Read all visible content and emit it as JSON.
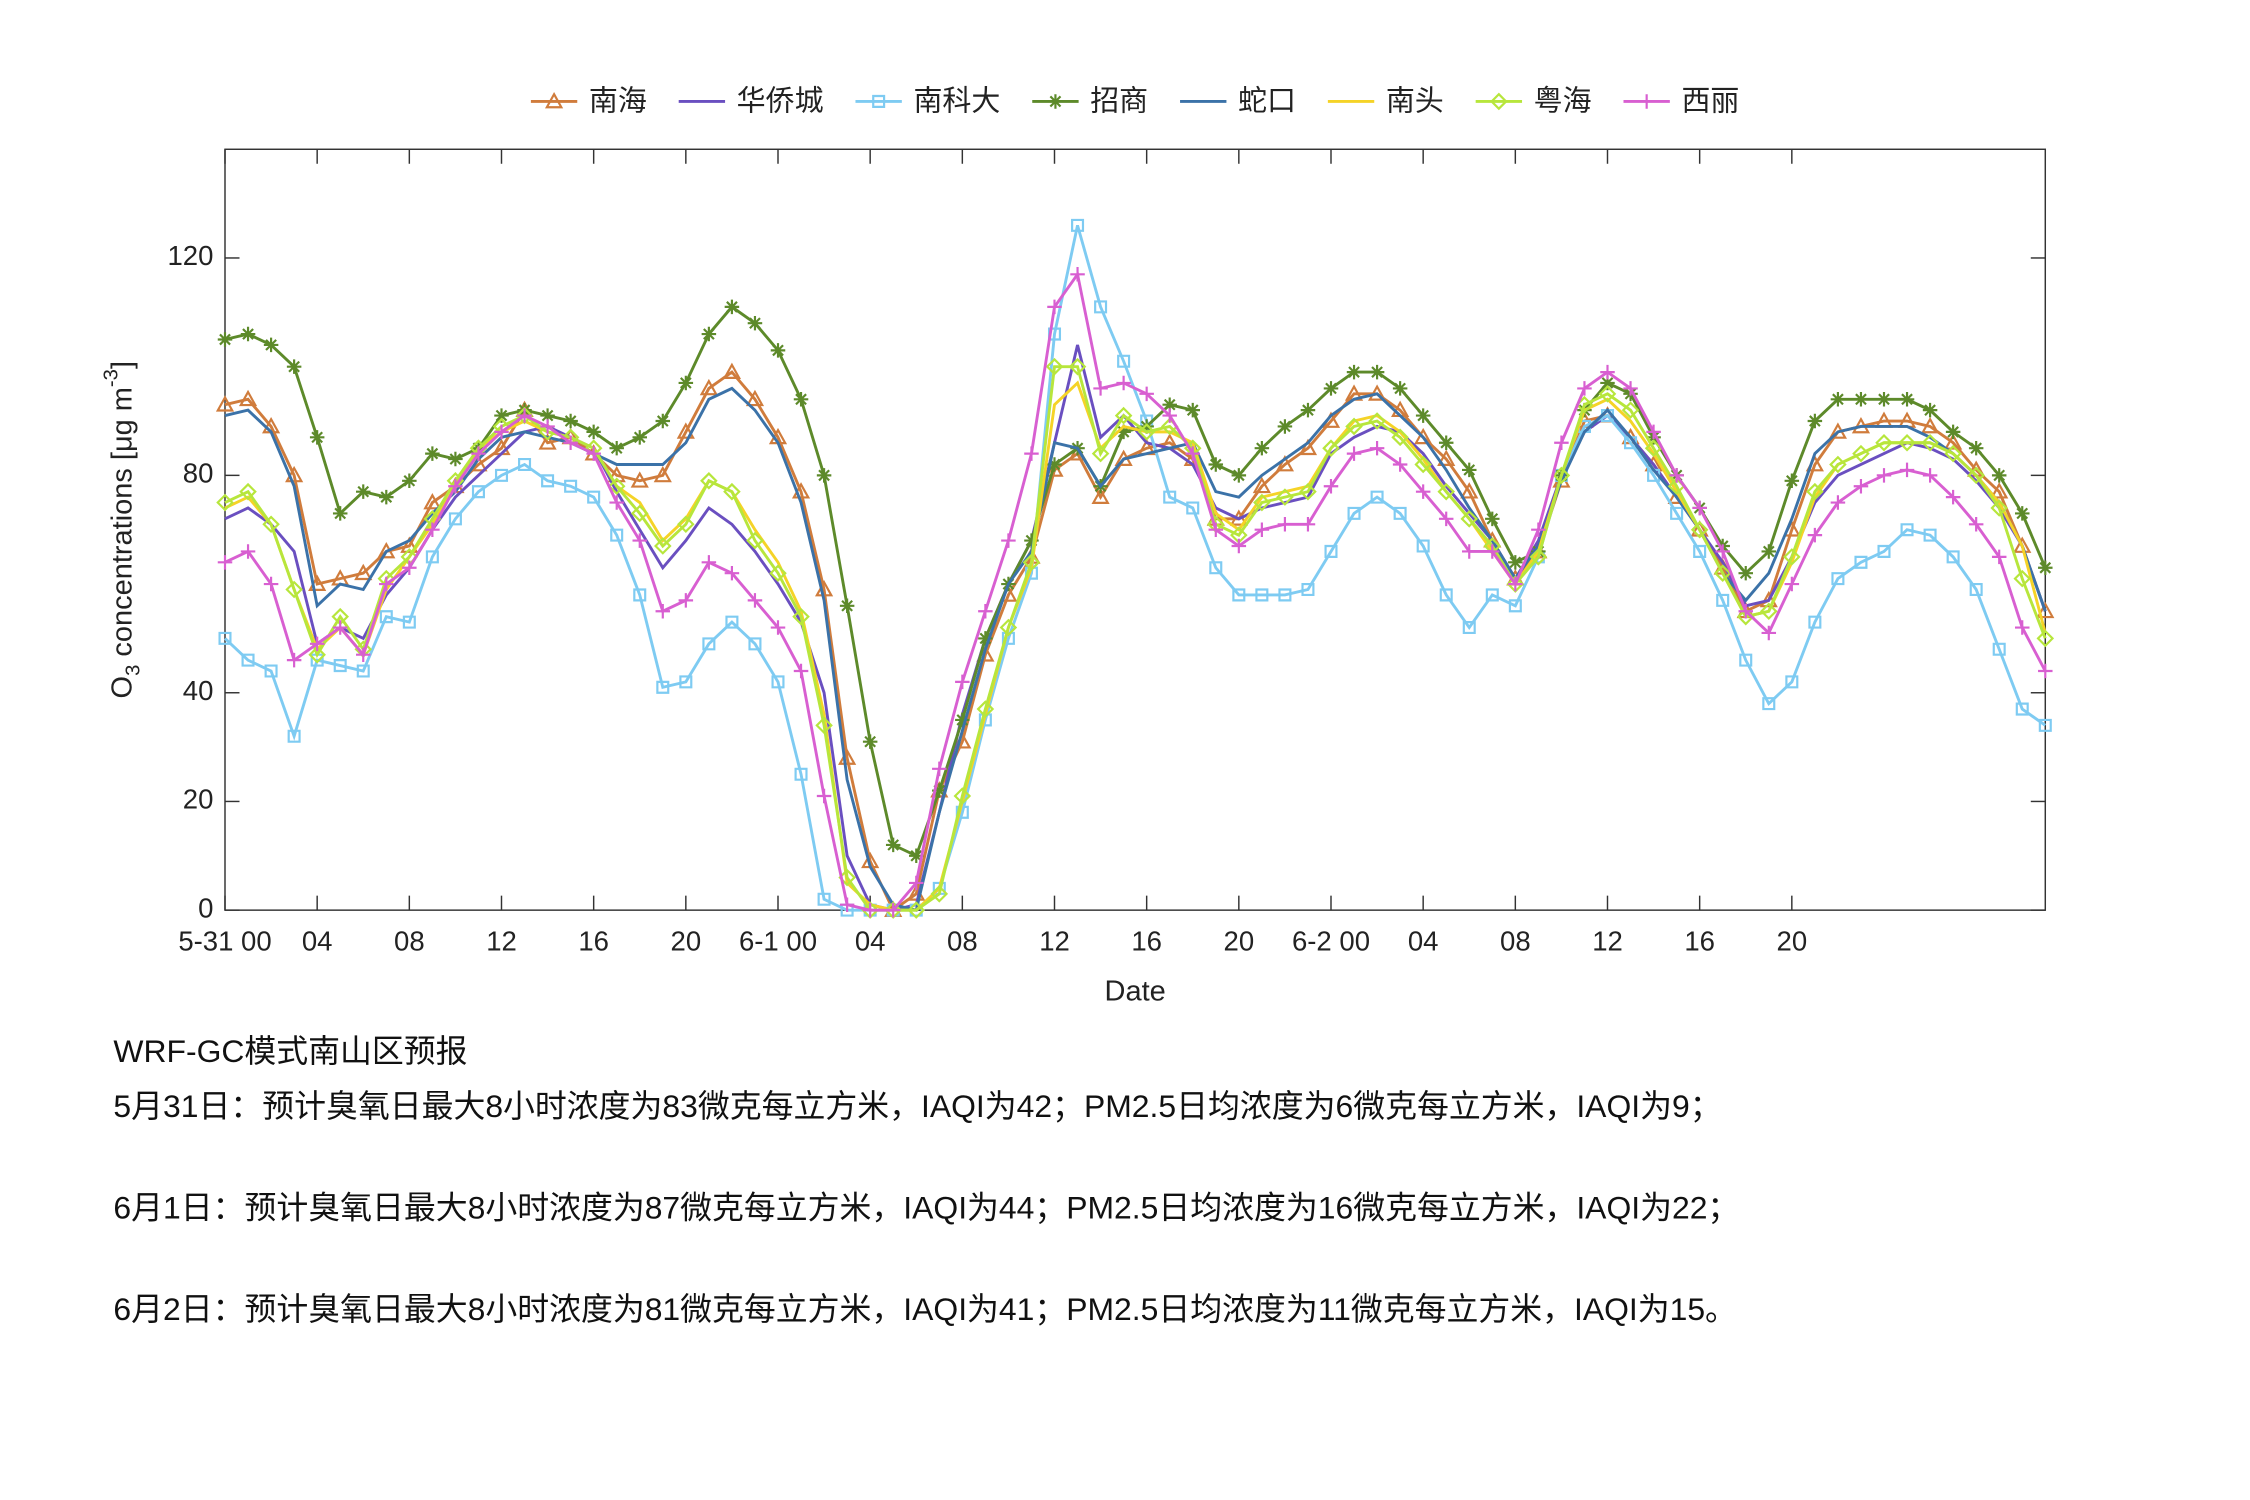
{
  "chart_data": {
    "type": "line",
    "legend": "top",
    "xlabel": "Date",
    "ylabel": [
      {
        "text": "O"
      },
      {
        "text": "3",
        "shift": "sub"
      },
      {
        "text": " concentrations [μg m"
      },
      {
        "text": "-3",
        "shift": "super"
      },
      {
        "text": "]"
      }
    ],
    "ylim": [
      0,
      140
    ],
    "yticks": [
      0,
      20,
      40,
      80,
      120
    ],
    "categories": [
      "5-31 00",
      null,
      null,
      null,
      "04",
      null,
      null,
      null,
      "08",
      null,
      null,
      null,
      "12",
      null,
      null,
      null,
      "16",
      null,
      null,
      null,
      "20",
      null,
      null,
      null,
      "6-1 00",
      null,
      null,
      null,
      "04",
      null,
      null,
      null,
      "08",
      null,
      null,
      null,
      "12",
      null,
      null,
      null,
      "16",
      null,
      null,
      null,
      "20",
      null,
      null,
      null,
      "6-2 00",
      null,
      null,
      null,
      "04",
      null,
      null,
      null,
      "08",
      null,
      null,
      null,
      "12",
      null,
      null,
      null,
      "16",
      null,
      null,
      null,
      "20",
      null,
      null,
      null,
      null,
      null,
      null,
      null,
      null,
      null,
      null,
      null
    ],
    "series": [
      {
        "name": "南海",
        "color": "#d07c3c",
        "marker": "triangle",
        "values": [
          93,
          94,
          89,
          80,
          60,
          61,
          62,
          66,
          67,
          75,
          78,
          82,
          85,
          92,
          86,
          87,
          84,
          80,
          79,
          80,
          88,
          96,
          99,
          94,
          87,
          77,
          59,
          28,
          9,
          0,
          3,
          22,
          31,
          47,
          58,
          65,
          81,
          84,
          76,
          83,
          85,
          86,
          83,
          72,
          72,
          78,
          82,
          85,
          90,
          95,
          95,
          92,
          87,
          83,
          77,
          68,
          61,
          66,
          79,
          90,
          91,
          87,
          82,
          76,
          70,
          63,
          55,
          57,
          70,
          82,
          88,
          89,
          90,
          90,
          89,
          86,
          81,
          77,
          67,
          55
        ]
      },
      {
        "name": "华侨城",
        "color": "#6a4fc0",
        "marker": "none",
        "values": [
          72,
          74,
          71,
          66,
          49,
          52,
          50,
          58,
          63,
          70,
          76,
          80,
          84,
          88,
          89,
          87,
          85,
          77,
          70,
          63,
          68,
          74,
          71,
          66,
          60,
          53,
          40,
          10,
          1,
          0,
          1,
          18,
          36,
          50,
          60,
          68,
          86,
          104,
          87,
          91,
          86,
          85,
          82,
          74,
          72,
          74,
          75,
          76,
          84,
          87,
          89,
          88,
          84,
          78,
          73,
          68,
          61,
          68,
          80,
          88,
          91,
          87,
          82,
          76,
          70,
          64,
          56,
          57,
          65,
          75,
          80,
          82,
          84,
          86,
          85,
          83,
          79,
          74,
          67,
          55
        ]
      },
      {
        "name": "南科大",
        "color": "#7ecbf2",
        "marker": "square",
        "values": [
          50,
          46,
          44,
          32,
          46,
          45,
          44,
          54,
          53,
          65,
          72,
          77,
          80,
          82,
          79,
          78,
          76,
          69,
          58,
          41,
          42,
          49,
          53,
          49,
          42,
          25,
          2,
          0,
          0,
          0,
          0,
          4,
          18,
          35,
          50,
          62,
          106,
          126,
          111,
          101,
          90,
          76,
          74,
          63,
          58,
          58,
          58,
          59,
          66,
          73,
          76,
          73,
          67,
          58,
          52,
          58,
          56,
          65,
          80,
          89,
          91,
          86,
          80,
          73,
          66,
          57,
          46,
          38,
          42,
          53,
          61,
          64,
          66,
          70,
          69,
          65,
          59,
          48,
          37,
          34
        ]
      },
      {
        "name": "招商",
        "color": "#5d8a2a",
        "marker": "asterisk",
        "values": [
          105,
          106,
          104,
          100,
          87,
          73,
          77,
          76,
          79,
          84,
          83,
          85,
          91,
          92,
          91,
          90,
          88,
          85,
          87,
          90,
          97,
          106,
          111,
          108,
          103,
          94,
          80,
          56,
          31,
          12,
          10,
          22,
          35,
          50,
          60,
          68,
          82,
          85,
          78,
          88,
          89,
          93,
          92,
          82,
          80,
          85,
          89,
          92,
          96,
          99,
          99,
          96,
          91,
          86,
          81,
          72,
          64,
          66,
          80,
          92,
          97,
          95,
          87,
          80,
          74,
          67,
          62,
          66,
          79,
          90,
          94,
          94,
          94,
          94,
          92,
          88,
          85,
          80,
          73,
          63
        ]
      },
      {
        "name": "蛇口",
        "color": "#3b72a8",
        "marker": "none",
        "values": [
          91,
          92,
          88,
          78,
          56,
          60,
          59,
          66,
          68,
          73,
          77,
          83,
          87,
          88,
          87,
          86,
          84,
          82,
          82,
          82,
          86,
          94,
          96,
          92,
          86,
          75,
          57,
          24,
          8,
          1,
          0,
          18,
          33,
          48,
          60,
          66,
          86,
          85,
          78,
          83,
          84,
          85,
          86,
          77,
          76,
          80,
          83,
          86,
          91,
          94,
          95,
          91,
          87,
          81,
          74,
          68,
          61,
          67,
          79,
          88,
          92,
          87,
          81,
          76,
          70,
          62,
          57,
          62,
          72,
          84,
          88,
          89,
          89,
          89,
          87,
          84,
          80,
          75,
          67,
          55
        ]
      },
      {
        "name": "南头",
        "color": "#f5d327",
        "marker": "none",
        "values": [
          74,
          76,
          71,
          59,
          48,
          52,
          47,
          59,
          65,
          71,
          78,
          85,
          88,
          90,
          88,
          87,
          85,
          78,
          75,
          68,
          72,
          79,
          77,
          70,
          64,
          55,
          36,
          5,
          1,
          0,
          0,
          4,
          20,
          36,
          52,
          63,
          93,
          97,
          85,
          89,
          88,
          88,
          86,
          73,
          70,
          76,
          77,
          78,
          85,
          90,
          91,
          88,
          83,
          77,
          72,
          66,
          60,
          66,
          80,
          92,
          94,
          90,
          84,
          77,
          70,
          62,
          54,
          55,
          64,
          76,
          82,
          84,
          86,
          86,
          86,
          84,
          80,
          75,
          67,
          51
        ]
      },
      {
        "name": "粤海",
        "color": "#b7e63c",
        "marker": "diamond",
        "values": [
          75,
          77,
          71,
          59,
          47,
          54,
          48,
          61,
          65,
          72,
          79,
          85,
          89,
          91,
          88,
          87,
          85,
          78,
          73,
          67,
          71,
          79,
          77,
          68,
          62,
          54,
          34,
          6,
          0,
          0,
          0,
          3,
          21,
          37,
          52,
          64,
          100,
          100,
          84,
          91,
          88,
          89,
          85,
          71,
          69,
          75,
          76,
          77,
          85,
          89,
          90,
          87,
          82,
          77,
          72,
          67,
          60,
          65,
          80,
          93,
          95,
          92,
          85,
          78,
          70,
          62,
          54,
          55,
          65,
          77,
          82,
          84,
          86,
          86,
          86,
          84,
          80,
          74,
          61,
          50
        ]
      },
      {
        "name": "西丽",
        "color": "#d85fd1",
        "marker": "plus",
        "values": [
          64,
          66,
          60,
          46,
          49,
          52,
          47,
          60,
          63,
          70,
          78,
          84,
          88,
          91,
          89,
          86,
          84,
          75,
          68,
          55,
          57,
          64,
          62,
          57,
          52,
          44,
          21,
          1,
          0,
          0,
          5,
          26,
          42,
          55,
          68,
          84,
          111,
          117,
          96,
          97,
          95,
          91,
          84,
          70,
          67,
          70,
          71,
          71,
          78,
          84,
          85,
          82,
          77,
          72,
          66,
          66,
          60,
          70,
          86,
          96,
          99,
          96,
          88,
          80,
          74,
          66,
          55,
          51,
          60,
          69,
          75,
          78,
          80,
          81,
          80,
          76,
          71,
          65,
          52,
          44
        ]
      }
    ]
  },
  "notes": {
    "heading": "WRF-GC模式南山区预报",
    "lines": [
      "5月31日：预计臭氧日最大8小时浓度为83微克每立方米，IAQI为42；PM2.5日均浓度为6微克每立方米，IAQI为9；",
      "6月1日：预计臭氧日最大8小时浓度为87微克每立方米，IAQI为44；PM2.5日均浓度为16微克每立方米，IAQI为22；",
      "6月2日：预计臭氧日最大8小时浓度为81微克每立方米，IAQI为41；PM2.5日均浓度为11微克每立方米，IAQI为15。"
    ]
  }
}
